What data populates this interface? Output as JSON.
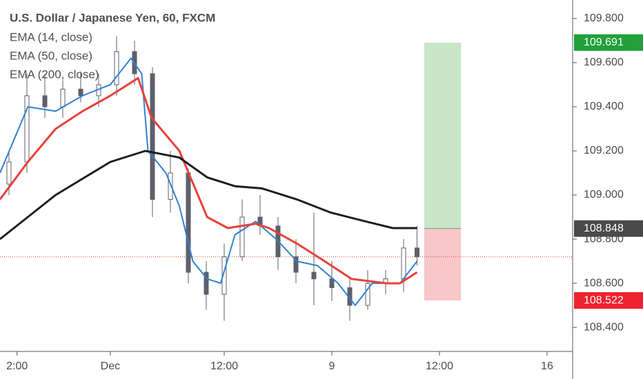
{
  "chart_data": {
    "type": "candlestick",
    "title": "U.S. Dollar / Japanese Yen, 60, FXCM",
    "xlim": [
      0,
      63.85
    ],
    "ylim": [
      108.291,
      109.884
    ],
    "xticks": [
      {
        "value": 1.9,
        "label": "2:00"
      },
      {
        "value": 12.3,
        "label": "Dec"
      },
      {
        "value": 25,
        "label": "12:00"
      },
      {
        "value": 37,
        "label": "9"
      },
      {
        "value": 49,
        "label": "12:00"
      },
      {
        "value": 61,
        "label": "16"
      }
    ],
    "yticks": [
      {
        "value": 108.4,
        "label": "108.400"
      },
      {
        "value": 108.6,
        "label": "108.600"
      },
      {
        "value": 108.8,
        "label": "108.800"
      },
      {
        "value": 109.0,
        "label": "109.000"
      },
      {
        "value": 109.2,
        "label": "109.200"
      },
      {
        "value": 109.4,
        "label": "109.400"
      },
      {
        "value": 109.6,
        "label": "109.600"
      },
      {
        "value": 109.8,
        "label": "109.800"
      }
    ],
    "candles": {
      "color": "#5d606b",
      "x": [
        1,
        3,
        5,
        7,
        9,
        11,
        13,
        15,
        17,
        19,
        21,
        23,
        25,
        27,
        29,
        31,
        33,
        35,
        37,
        39,
        41,
        43,
        45,
        46.5
      ],
      "open": [
        109.05,
        109.15,
        109.45,
        109.4,
        109.48,
        109.45,
        109.5,
        109.65,
        109.55,
        108.98,
        109.1,
        108.65,
        108.55,
        108.72,
        108.9,
        108.86,
        108.72,
        108.65,
        108.62,
        108.58,
        108.5,
        108.6,
        108.62,
        108.76
      ],
      "high": [
        109.2,
        109.55,
        109.55,
        109.52,
        109.56,
        109.55,
        109.72,
        109.7,
        109.58,
        109.2,
        109.12,
        108.7,
        108.78,
        108.98,
        109.0,
        108.9,
        108.8,
        108.92,
        108.7,
        108.62,
        108.66,
        108.66,
        108.8,
        108.86
      ],
      "low": [
        109.0,
        109.1,
        109.35,
        109.35,
        109.42,
        109.4,
        109.45,
        109.5,
        108.9,
        108.92,
        108.6,
        108.48,
        108.43,
        108.7,
        108.82,
        108.66,
        108.6,
        108.5,
        108.52,
        108.43,
        108.48,
        108.55,
        108.56,
        108.68
      ],
      "close": [
        109.15,
        109.45,
        109.4,
        109.48,
        109.45,
        109.5,
        109.65,
        109.55,
        108.98,
        109.1,
        108.65,
        108.55,
        108.72,
        108.9,
        108.86,
        108.72,
        108.65,
        108.62,
        108.58,
        108.5,
        108.6,
        108.62,
        108.76,
        108.72
      ]
    },
    "series": [
      {
        "name": "EMA (14, close)",
        "color": "#2f80d1",
        "x": [
          0,
          3.1,
          6.2,
          9.2,
          12.3,
          14.6,
          15.8,
          16.5,
          18.5,
          20,
          21.5,
          23.1,
          24.6,
          26.2,
          28.5,
          30.8,
          33.1,
          35.4,
          37.7,
          39.6,
          41.5,
          44.6,
          46.5
        ],
        "values": [
          109.1,
          109.4,
          109.38,
          109.45,
          109.5,
          109.62,
          109.55,
          109.2,
          109.1,
          108.95,
          108.7,
          108.62,
          108.6,
          108.82,
          108.88,
          108.8,
          108.7,
          108.68,
          108.6,
          108.5,
          108.6,
          108.6,
          108.7
        ]
      },
      {
        "name": "EMA (50, close)",
        "color": "#e8413a",
        "x": [
          0,
          3.1,
          6.2,
          9.2,
          12.3,
          15.4,
          16.9,
          20,
          23.1,
          25.4,
          28.5,
          30,
          33.1,
          36.2,
          39.2,
          43.1,
          44.6,
          46.5
        ],
        "values": [
          108.98,
          109.15,
          109.3,
          109.38,
          109.45,
          109.53,
          109.35,
          109.2,
          108.9,
          108.85,
          108.87,
          108.85,
          108.78,
          108.7,
          108.62,
          108.6,
          108.6,
          108.65
        ]
      },
      {
        "name": "EMA (200, close)",
        "color": "#1e1e1e",
        "x": [
          0,
          6.2,
          12.3,
          16.2,
          20,
          23.1,
          26.2,
          29.2,
          33.1,
          36.9,
          40.8,
          43.8,
          46.5
        ],
        "values": [
          108.8,
          109.0,
          109.15,
          109.2,
          109.17,
          109.08,
          109.04,
          109.03,
          108.98,
          108.92,
          108.88,
          108.85,
          108.85
        ]
      }
    ],
    "last_price": 108.72,
    "position": {
      "x": [
        47.3,
        51.4
      ],
      "entry": 108.848,
      "target": 109.691,
      "stop": 108.522
    }
  }
}
